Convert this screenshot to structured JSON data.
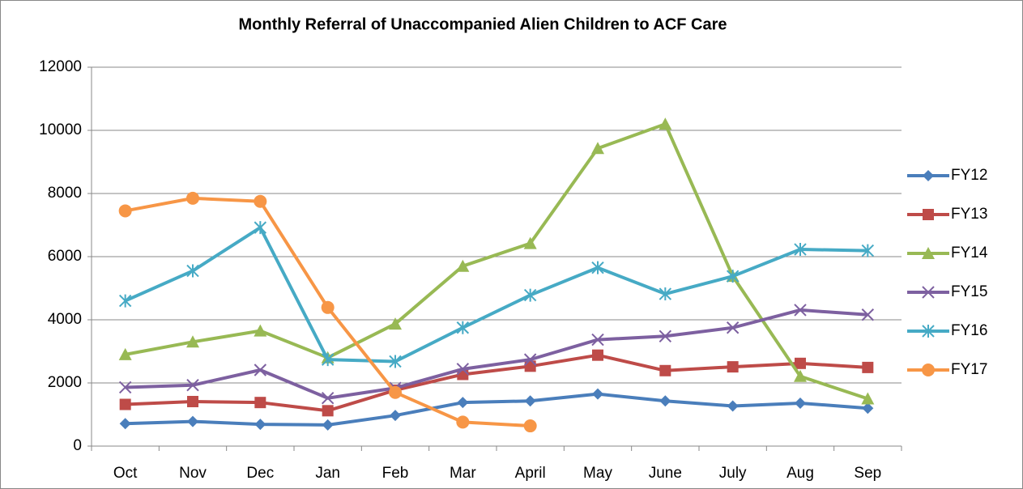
{
  "chart_data": {
    "type": "line",
    "title": "Monthly Referral of Unaccompanied Alien Children to ACF Care",
    "categories": [
      "Oct",
      "Nov",
      "Dec",
      "Jan",
      "Feb",
      "Mar",
      "April",
      "May",
      "June",
      "July",
      "Aug",
      "Sep"
    ],
    "series": [
      {
        "name": "FY12",
        "color": "#4a7ebb",
        "marker": "diamond",
        "values": [
          710,
          780,
          690,
          670,
          970,
          1380,
          1430,
          1650,
          1430,
          1270,
          1360,
          1200
        ]
      },
      {
        "name": "FY13",
        "color": "#be4b48",
        "marker": "square",
        "values": [
          1320,
          1410,
          1380,
          1120,
          1770,
          2270,
          2530,
          2880,
          2390,
          2510,
          2620,
          2490
        ]
      },
      {
        "name": "FY14",
        "color": "#98b954",
        "marker": "triangle",
        "values": [
          2900,
          3300,
          3650,
          2800,
          3870,
          5700,
          6420,
          9430,
          10200,
          5380,
          2210,
          1500
        ]
      },
      {
        "name": "FY15",
        "color": "#7d60a0",
        "marker": "x",
        "values": [
          1860,
          1930,
          2410,
          1520,
          1840,
          2440,
          2740,
          3370,
          3480,
          3750,
          4310,
          4160
        ]
      },
      {
        "name": "FY16",
        "color": "#46aac5",
        "marker": "asterisk",
        "values": [
          4600,
          5550,
          6920,
          2740,
          2680,
          3750,
          4780,
          5650,
          4820,
          5380,
          6230,
          6190
        ]
      },
      {
        "name": "FY17",
        "color": "#f79646",
        "marker": "circle",
        "values": [
          7450,
          7850,
          7750,
          4390,
          1700,
          760,
          640,
          null,
          null,
          null,
          null,
          null
        ]
      }
    ],
    "ylim": [
      0,
      12000
    ],
    "yticks": [
      0,
      2000,
      4000,
      6000,
      8000,
      10000,
      12000
    ],
    "grid": true,
    "legend": "right"
  }
}
